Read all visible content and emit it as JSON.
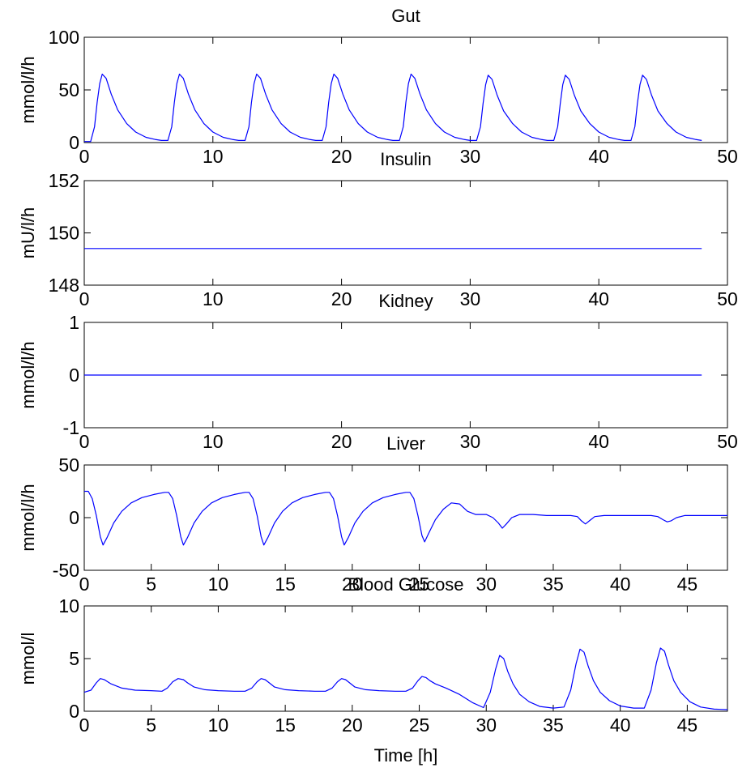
{
  "colors": {
    "series": "#0000ff",
    "axes": "#000000",
    "background": "#ffffff"
  },
  "chart_data": [
    {
      "id": "gut",
      "type": "line",
      "title": "Gut",
      "xlabel": "",
      "ylabel": "mmol/l/h",
      "xlim": [
        0,
        50
      ],
      "ylim": [
        0,
        100
      ],
      "xticks": [
        0,
        10,
        20,
        30,
        40,
        50
      ],
      "xtick_labels": [
        "0",
        "10",
        "20",
        "30",
        "40",
        "50"
      ],
      "yticks": [
        0,
        50,
        100
      ],
      "ytick_labels": [
        "0",
        "50",
        "100"
      ],
      "grid": false,
      "series": [
        {
          "x": [
            0,
            0.5,
            0.8,
            1.0,
            1.2,
            1.4,
            1.7,
            2.1,
            2.6,
            3.3,
            4.0,
            4.8,
            5.5,
            6.0,
            6.5,
            6.8,
            7.0,
            7.2,
            7.4,
            7.7,
            8.1,
            8.6,
            9.3,
            10.0,
            10.8,
            11.5,
            12.0,
            12.5,
            12.8,
            13.0,
            13.2,
            13.4,
            13.7,
            14.1,
            14.6,
            15.3,
            16.0,
            16.8,
            17.5,
            18.0,
            18.5,
            18.8,
            19.0,
            19.2,
            19.4,
            19.7,
            20.1,
            20.6,
            21.3,
            22.0,
            22.8,
            23.5,
            24.0,
            24.5,
            24.8,
            25.0,
            25.2,
            25.4,
            25.7,
            26.1,
            26.6,
            27.3,
            28.0,
            28.8,
            29.5,
            30.0,
            30.5,
            30.8,
            31.0,
            31.2,
            31.4,
            31.7,
            32.1,
            32.6,
            33.3,
            34.0,
            34.8,
            35.5,
            36.0,
            36.5,
            36.8,
            37.0,
            37.2,
            37.4,
            37.7,
            38.1,
            38.6,
            39.3,
            40.0,
            40.8,
            41.5,
            42.0,
            42.5,
            42.8,
            43.0,
            43.2,
            43.4,
            43.7,
            44.1,
            44.6,
            45.3,
            46.0,
            46.8,
            47.5,
            48.0
          ],
          "y": [
            1,
            1,
            15,
            38,
            56,
            65,
            61,
            46,
            31,
            18,
            10,
            5,
            3,
            2,
            2,
            15,
            38,
            56,
            65,
            61,
            46,
            31,
            18,
            10,
            5,
            3,
            2,
            2,
            15,
            38,
            56,
            65,
            61,
            46,
            31,
            18,
            10,
            5,
            3,
            2,
            2,
            15,
            38,
            56,
            65,
            61,
            46,
            31,
            18,
            10,
            5,
            3,
            2,
            2,
            15,
            38,
            56,
            65,
            61,
            46,
            31,
            18,
            10,
            5,
            3,
            2,
            2,
            15,
            37,
            55,
            64,
            60,
            45,
            30,
            18,
            10,
            5,
            3,
            2,
            2,
            15,
            37,
            55,
            64,
            60,
            45,
            30,
            18,
            10,
            5,
            3,
            2,
            2,
            15,
            37,
            55,
            64,
            60,
            45,
            30,
            18,
            10,
            5,
            3,
            2
          ]
        }
      ]
    },
    {
      "id": "insulin",
      "type": "line",
      "title": "Insulin",
      "xlabel": "",
      "ylabel": "mU/l/h",
      "xlim": [
        0,
        50
      ],
      "ylim": [
        148,
        152
      ],
      "xticks": [
        0,
        10,
        20,
        30,
        40,
        50
      ],
      "xtick_labels": [
        "0",
        "10",
        "20",
        "30",
        "40",
        "50"
      ],
      "yticks": [
        148,
        150,
        152
      ],
      "ytick_labels": [
        "148",
        "150",
        "152"
      ],
      "grid": false,
      "series": [
        {
          "x": [
            0,
            48
          ],
          "y": [
            149.4,
            149.4
          ]
        }
      ]
    },
    {
      "id": "kidney",
      "type": "line",
      "title": "Kidney",
      "xlabel": "",
      "ylabel": "mmol/l/h",
      "xlim": [
        0,
        50
      ],
      "ylim": [
        -1,
        1
      ],
      "xticks": [
        0,
        10,
        20,
        30,
        40,
        50
      ],
      "xtick_labels": [
        "0",
        "10",
        "20",
        "30",
        "40",
        "50"
      ],
      "yticks": [
        -1,
        0,
        1
      ],
      "ytick_labels": [
        "-1",
        "0",
        "1"
      ],
      "grid": false,
      "series": [
        {
          "x": [
            0,
            48
          ],
          "y": [
            0,
            0
          ]
        }
      ]
    },
    {
      "id": "liver",
      "type": "line",
      "title": "Liver",
      "xlabel": "",
      "ylabel": "mmol/l/h",
      "xlim": [
        0,
        48
      ],
      "ylim": [
        -50,
        50
      ],
      "xticks": [
        0,
        5,
        10,
        15,
        20,
        25,
        30,
        35,
        40,
        45
      ],
      "xtick_labels": [
        "0",
        "5",
        "10",
        "15",
        "20",
        "25",
        "30",
        "35",
        "40",
        "45"
      ],
      "yticks": [
        -50,
        0,
        50
      ],
      "ytick_labels": [
        "-50",
        "0",
        "50"
      ],
      "grid": false,
      "series": [
        {
          "x": [
            0,
            0.3,
            0.6,
            0.9,
            1.2,
            1.4,
            1.7,
            2.2,
            2.8,
            3.5,
            4.3,
            5.2,
            6.0,
            6.3,
            6.6,
            6.9,
            7.2,
            7.4,
            7.7,
            8.2,
            8.8,
            9.5,
            10.3,
            11.2,
            12.0,
            12.3,
            12.6,
            12.9,
            13.2,
            13.4,
            13.7,
            14.2,
            14.8,
            15.5,
            16.3,
            17.2,
            18.0,
            18.3,
            18.6,
            18.9,
            19.2,
            19.4,
            19.7,
            20.2,
            20.8,
            21.5,
            22.3,
            23.2,
            24.0,
            24.3,
            24.6,
            24.9,
            25.2,
            25.4,
            25.7,
            26.2,
            26.8,
            27.4,
            28.0,
            28.6,
            29.2,
            30.0,
            30.5,
            30.9,
            31.2,
            31.5,
            31.9,
            32.5,
            33.5,
            34.5,
            35.5,
            36.3,
            36.8,
            37.1,
            37.4,
            37.7,
            38.1,
            38.8,
            40.0,
            41.5,
            42.3,
            42.8,
            43.2,
            43.5,
            43.8,
            44.2,
            44.8,
            46.0,
            48.0
          ],
          "y": [
            25,
            25,
            18,
            2,
            -18,
            -26,
            -19,
            -5,
            6,
            14,
            19,
            22,
            24,
            24,
            18,
            2,
            -18,
            -26,
            -19,
            -5,
            6,
            14,
            19,
            22,
            24,
            24,
            18,
            2,
            -18,
            -26,
            -19,
            -5,
            6,
            14,
            19,
            22,
            24,
            24,
            18,
            2,
            -18,
            -26,
            -19,
            -5,
            6,
            14,
            19,
            22,
            24,
            24,
            18,
            2,
            -17,
            -23,
            -15,
            -2,
            8,
            14,
            13,
            6,
            3,
            3,
            0,
            -5,
            -10,
            -6,
            0,
            3,
            3,
            2,
            2,
            2,
            1,
            -3,
            -6,
            -3,
            1,
            2,
            2,
            2,
            2,
            1,
            -2,
            -4,
            -3,
            0,
            2,
            2,
            2
          ]
        }
      ]
    },
    {
      "id": "blood-glucose",
      "type": "line",
      "title": "Blood Glucose",
      "xlabel": "Time [h]",
      "ylabel": "mmol/l",
      "xlim": [
        0,
        48
      ],
      "ylim": [
        0,
        10
      ],
      "xticks": [
        0,
        5,
        10,
        15,
        20,
        25,
        30,
        35,
        40,
        45
      ],
      "xtick_labels": [
        "0",
        "5",
        "10",
        "15",
        "20",
        "25",
        "30",
        "35",
        "40",
        "45"
      ],
      "yticks": [
        0,
        5,
        10
      ],
      "ytick_labels": [
        "0",
        "5",
        "10"
      ],
      "grid": false,
      "series": [
        {
          "x": [
            0,
            0.5,
            0.9,
            1.2,
            1.5,
            2.0,
            2.8,
            3.8,
            5.0,
            5.8,
            6.2,
            6.6,
            7.0,
            7.4,
            7.7,
            8.2,
            9.0,
            10.0,
            11.2,
            12.0,
            12.5,
            12.9,
            13.2,
            13.5,
            13.8,
            14.2,
            15.0,
            16.0,
            17.2,
            18.0,
            18.5,
            18.9,
            19.2,
            19.5,
            19.8,
            20.2,
            21.0,
            22.0,
            23.2,
            24.0,
            24.5,
            24.9,
            25.2,
            25.5,
            25.8,
            26.2,
            27.0,
            28.0,
            29.0,
            29.8,
            30.3,
            30.7,
            31.0,
            31.3,
            31.6,
            32.0,
            32.5,
            33.2,
            34.0,
            35.0,
            35.8,
            36.3,
            36.7,
            37.0,
            37.3,
            37.6,
            38.0,
            38.5,
            39.2,
            40.0,
            41.0,
            41.8,
            42.3,
            42.7,
            43.0,
            43.3,
            43.6,
            44.0,
            44.5,
            45.2,
            46.0,
            47.0,
            48.0
          ],
          "y": [
            1.8,
            2.0,
            2.7,
            3.1,
            3.0,
            2.6,
            2.2,
            2.0,
            1.95,
            1.9,
            2.2,
            2.8,
            3.1,
            3.0,
            2.7,
            2.3,
            2.05,
            1.95,
            1.9,
            1.9,
            2.2,
            2.8,
            3.1,
            3.0,
            2.7,
            2.3,
            2.05,
            1.95,
            1.9,
            1.9,
            2.2,
            2.8,
            3.1,
            3.0,
            2.7,
            2.3,
            2.05,
            1.95,
            1.9,
            1.9,
            2.2,
            2.9,
            3.3,
            3.2,
            2.9,
            2.6,
            2.2,
            1.6,
            0.8,
            0.35,
            1.8,
            4.0,
            5.3,
            5.0,
            3.8,
            2.6,
            1.6,
            0.9,
            0.45,
            0.3,
            0.4,
            2.0,
            4.5,
            5.9,
            5.6,
            4.3,
            2.9,
            1.8,
            1.0,
            0.5,
            0.3,
            0.3,
            2.0,
            4.6,
            6.0,
            5.7,
            4.4,
            2.9,
            1.8,
            0.9,
            0.4,
            0.2,
            0.15
          ]
        }
      ]
    }
  ]
}
